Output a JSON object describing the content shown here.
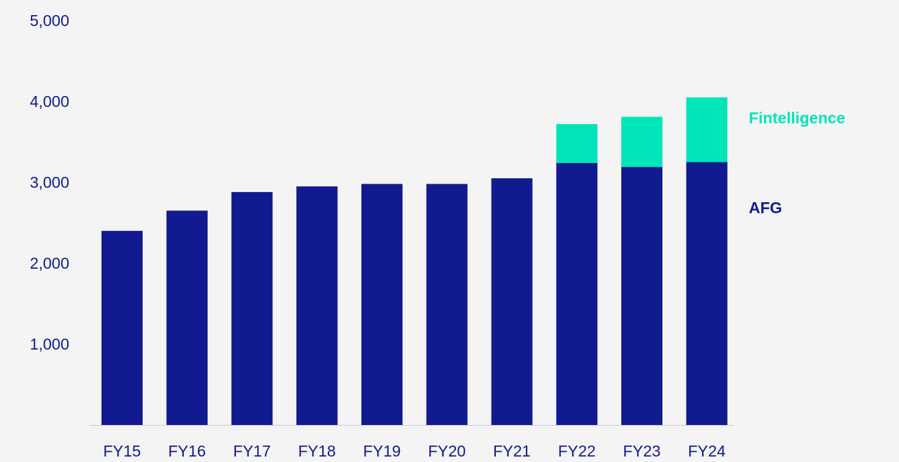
{
  "chart_data": {
    "type": "bar",
    "stacked": true,
    "title": "",
    "xlabel": "",
    "ylabel": "",
    "ylim": [
      0,
      5000
    ],
    "y_ticks": [
      1000,
      2000,
      3000,
      4000,
      5000
    ],
    "y_tick_labels": [
      "1,000",
      "2,000",
      "3,000",
      "4,000",
      "5,000"
    ],
    "categories": [
      "FY15",
      "FY16",
      "FY17",
      "FY18",
      "FY19",
      "FY20",
      "FY21",
      "FY22",
      "FY23",
      "FY24"
    ],
    "series": [
      {
        "name": "AFG",
        "color": "#111a8f",
        "values": [
          2400,
          2650,
          2880,
          2950,
          2980,
          2980,
          3050,
          3240,
          3190,
          3250
        ]
      },
      {
        "name": "Fintelligence",
        "color": "#00e5b8",
        "values": [
          0,
          0,
          0,
          0,
          0,
          0,
          0,
          480,
          620,
          800
        ]
      }
    ],
    "grid": false,
    "legend_placement": "right, inline with series"
  },
  "colors": {
    "background": "#f4f4f4",
    "axis_text": "#111a8f",
    "baseline": "#c8c8d8"
  }
}
